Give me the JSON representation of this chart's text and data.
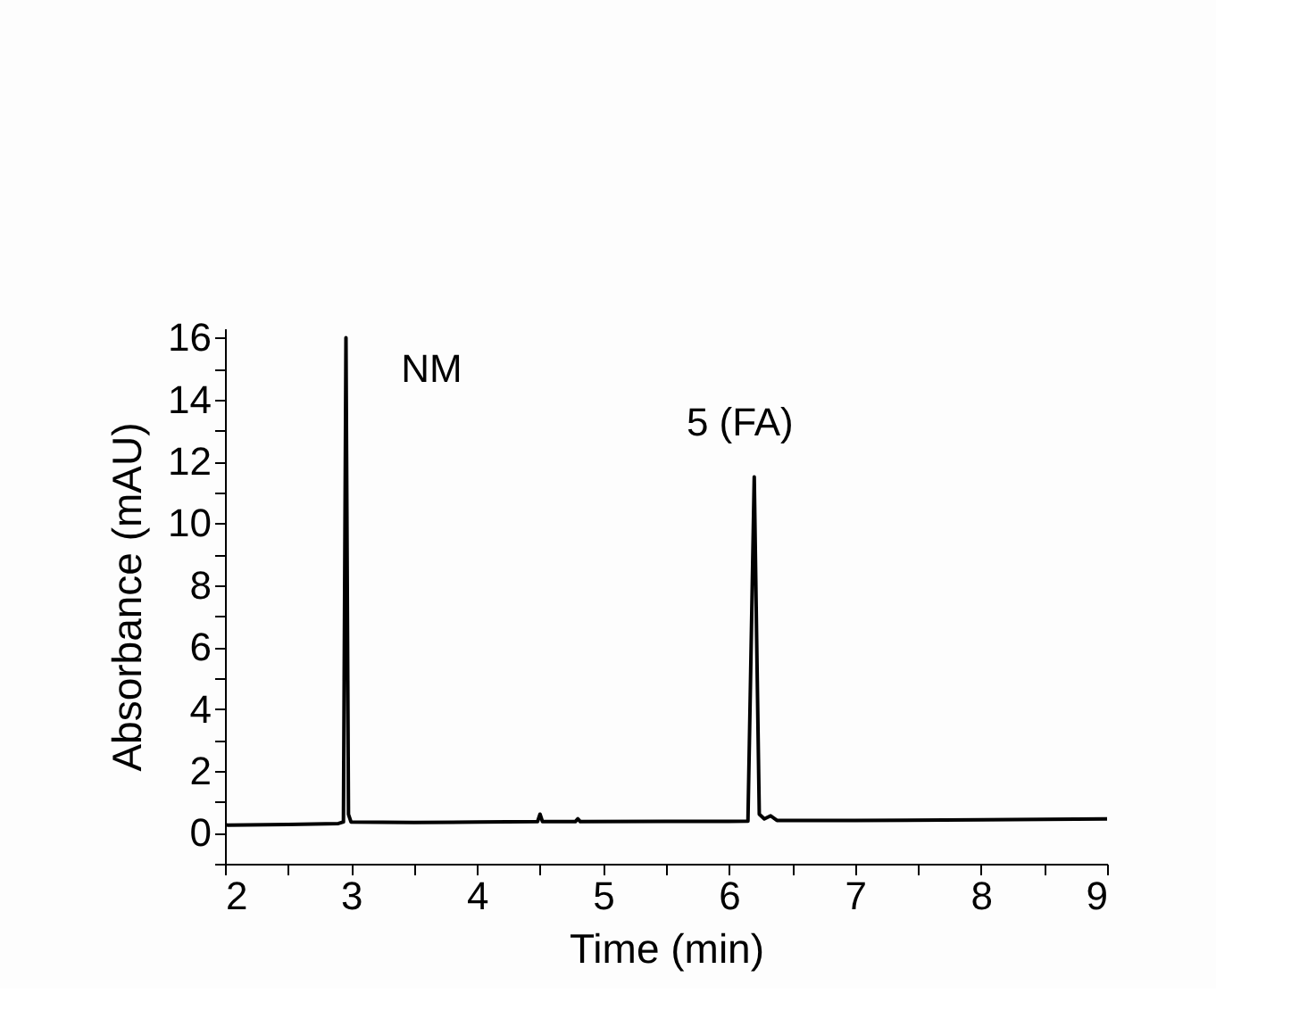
{
  "chart_data": {
    "type": "line",
    "xlabel": "Time (min)",
    "ylabel": "Absorbance (mAU)",
    "x": [
      2.0,
      2.5,
      2.9,
      2.94,
      2.96,
      2.98,
      3.0,
      3.5,
      4.0,
      4.48,
      4.5,
      4.52,
      4.78,
      4.8,
      4.82,
      5.5,
      6.0,
      6.15,
      6.2,
      6.24,
      6.28,
      6.33,
      6.38,
      7.0,
      8.0,
      9.0
    ],
    "series": [
      {
        "color": "#000000",
        "values": [
          0.25,
          0.27,
          0.3,
          0.35,
          16.0,
          0.6,
          0.35,
          0.33,
          0.35,
          0.36,
          0.6,
          0.36,
          0.36,
          0.45,
          0.36,
          0.37,
          0.37,
          0.38,
          11.5,
          0.6,
          0.45,
          0.55,
          0.4,
          0.4,
          0.42,
          0.45
        ]
      }
    ],
    "xlim": [
      2,
      9
    ],
    "xticks": [
      2,
      {
        "value": 2.5,
        "label": null
      },
      3,
      {
        "value": 3.5,
        "label": null
      },
      4,
      {
        "value": 4.5,
        "label": null
      },
      5,
      {
        "value": 5.5,
        "label": null
      },
      6,
      {
        "value": 6.5,
        "label": null
      },
      7,
      {
        "value": 7.5,
        "label": null
      },
      8,
      {
        "value": 8.5,
        "label": null
      },
      9
    ],
    "ylim": [
      -1,
      16.3
    ],
    "yticks": [
      {
        "value": -1,
        "label": null
      },
      0,
      {
        "value": 1,
        "label": null
      },
      2,
      {
        "value": 3,
        "label": null
      },
      4,
      {
        "value": 5,
        "label": null
      },
      6,
      {
        "value": 7,
        "label": null
      },
      8,
      {
        "value": 9,
        "label": null
      },
      10,
      {
        "value": 11,
        "label": null
      },
      12,
      {
        "value": 13,
        "label": null
      },
      14,
      {
        "value": 15,
        "label": null
      },
      16
    ],
    "annotations": [
      {
        "text": "NM",
        "x": 2.96,
        "y": 16.0
      },
      {
        "text": "5 (FA)",
        "x": 6.2,
        "y": 11.5
      }
    ],
    "grid": false,
    "marker": "none",
    "line_style": "solid"
  }
}
